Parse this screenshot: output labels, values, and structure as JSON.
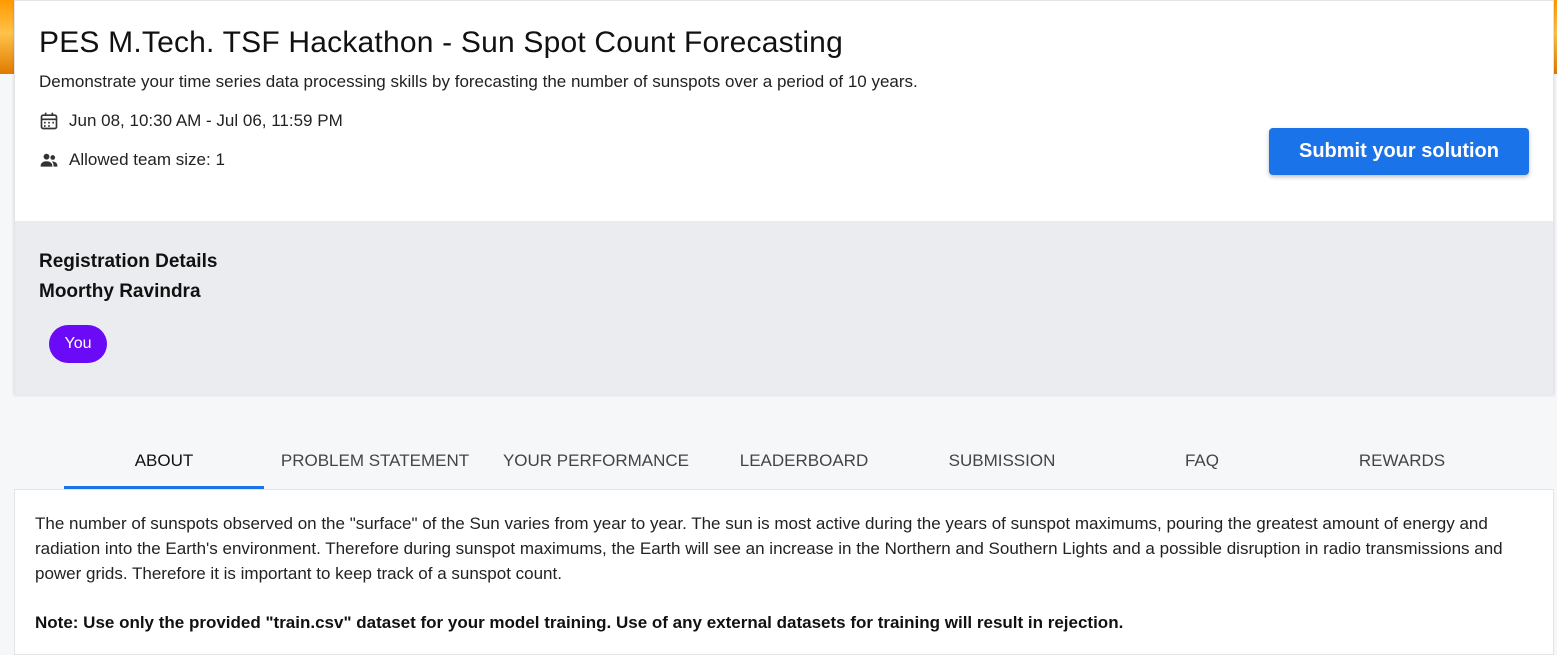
{
  "event": {
    "title": "PES M.Tech. TSF Hackathon - Sun Spot Count Forecasting",
    "description": "Demonstrate your time series data processing skills by forecasting the number of sunspots over a period of 10 years.",
    "dates": "Jun 08, 10:30 AM - Jul 06, 11:59 PM",
    "team_size": "Allowed team size: 1",
    "submit_label": "Submit your solution",
    "accent_color": "#1a73e8"
  },
  "registration": {
    "heading": "Registration Details",
    "name": "Moorthy Ravindra",
    "chip_label": "You",
    "chip_color": "#6a0af7"
  },
  "tabs": [
    {
      "label": "ABOUT",
      "active": true
    },
    {
      "label": "PROBLEM STATEMENT",
      "active": false
    },
    {
      "label": "YOUR PERFORMANCE",
      "active": false
    },
    {
      "label": "LEADERBOARD",
      "active": false
    },
    {
      "label": "SUBMISSION",
      "active": false
    },
    {
      "label": "FAQ",
      "active": false
    },
    {
      "label": "REWARDS",
      "active": false
    }
  ],
  "about": {
    "paragraph": "The number of sunspots observed on the \"surface\" of the Sun varies from year to year. The sun is most active during the years of sunspot maximums, pouring the greatest amount of energy and radiation into the Earth's environment. Therefore during sunspot maximums, the Earth will see an increase in the Northern and Southern Lights and a possible disruption in radio transmissions and power grids. Therefore it is important to keep track of a sunspot count.",
    "note": "Note: Use only the provided \"train.csv\" dataset for your model training.  Use of any external datasets for training will result in rejection."
  },
  "icons": {
    "dates": "calendar-icon",
    "team": "people-icon"
  }
}
